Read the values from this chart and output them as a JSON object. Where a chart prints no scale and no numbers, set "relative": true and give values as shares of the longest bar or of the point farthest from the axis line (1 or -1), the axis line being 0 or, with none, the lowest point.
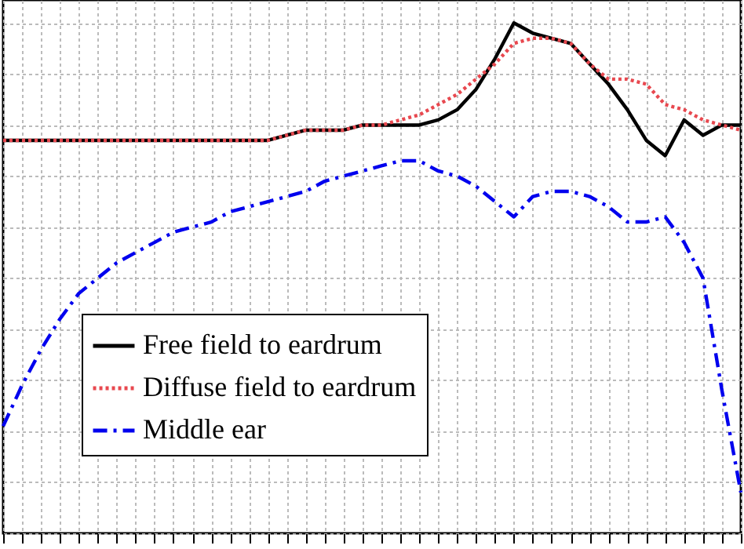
{
  "chart_data": {
    "type": "line",
    "relative": true,
    "grid": true,
    "legend": "bottom left",
    "categories": [
      null,
      null,
      null,
      null,
      null,
      null,
      null,
      null,
      null,
      null,
      null,
      null,
      null,
      null,
      null,
      null,
      null,
      null,
      null,
      null,
      null,
      null,
      null,
      null,
      null,
      null,
      null,
      null,
      null,
      null,
      null,
      null,
      null,
      null,
      null,
      null,
      null,
      null,
      null,
      null
    ],
    "series": [
      {
        "name": "Free field to eardrum",
        "color": "#000000",
        "line_style": "solid",
        "values": [
          0.77,
          0.77,
          0.77,
          0.77,
          0.77,
          0.77,
          0.77,
          0.77,
          0.77,
          0.77,
          0.77,
          0.77,
          0.77,
          0.77,
          0.77,
          0.78,
          0.79,
          0.79,
          0.79,
          0.8,
          0.8,
          0.8,
          0.8,
          0.81,
          0.83,
          0.87,
          0.93,
          1.0,
          0.98,
          0.97,
          0.96,
          0.92,
          0.88,
          0.83,
          0.77,
          0.74,
          0.81,
          0.78,
          0.8,
          0.8
        ]
      },
      {
        "name": "Diffuse field to eardrum",
        "color": "#e8484f",
        "line_style": "dotted",
        "values": [
          0.77,
          0.77,
          0.77,
          0.77,
          0.77,
          0.77,
          0.77,
          0.77,
          0.77,
          0.77,
          0.77,
          0.77,
          0.77,
          0.77,
          0.77,
          0.78,
          0.79,
          0.79,
          0.79,
          0.8,
          0.8,
          0.81,
          0.82,
          0.84,
          0.86,
          0.89,
          0.92,
          0.96,
          0.97,
          0.97,
          0.96,
          0.92,
          0.89,
          0.89,
          0.88,
          0.84,
          0.83,
          0.81,
          0.8,
          0.79
        ]
      },
      {
        "name": "Middle ear",
        "color": "#0000ee",
        "line_style": "dashed",
        "values": [
          0.21,
          0.29,
          0.36,
          0.42,
          0.47,
          0.5,
          0.53,
          0.55,
          0.57,
          0.59,
          0.6,
          0.61,
          0.63,
          0.64,
          0.65,
          0.66,
          0.67,
          0.69,
          0.7,
          0.71,
          0.72,
          0.73,
          0.73,
          0.71,
          0.7,
          0.68,
          0.65,
          0.62,
          0.66,
          0.67,
          0.67,
          0.66,
          0.64,
          0.61,
          0.61,
          0.62,
          0.57,
          0.5,
          0.28,
          0.08
        ]
      }
    ]
  }
}
